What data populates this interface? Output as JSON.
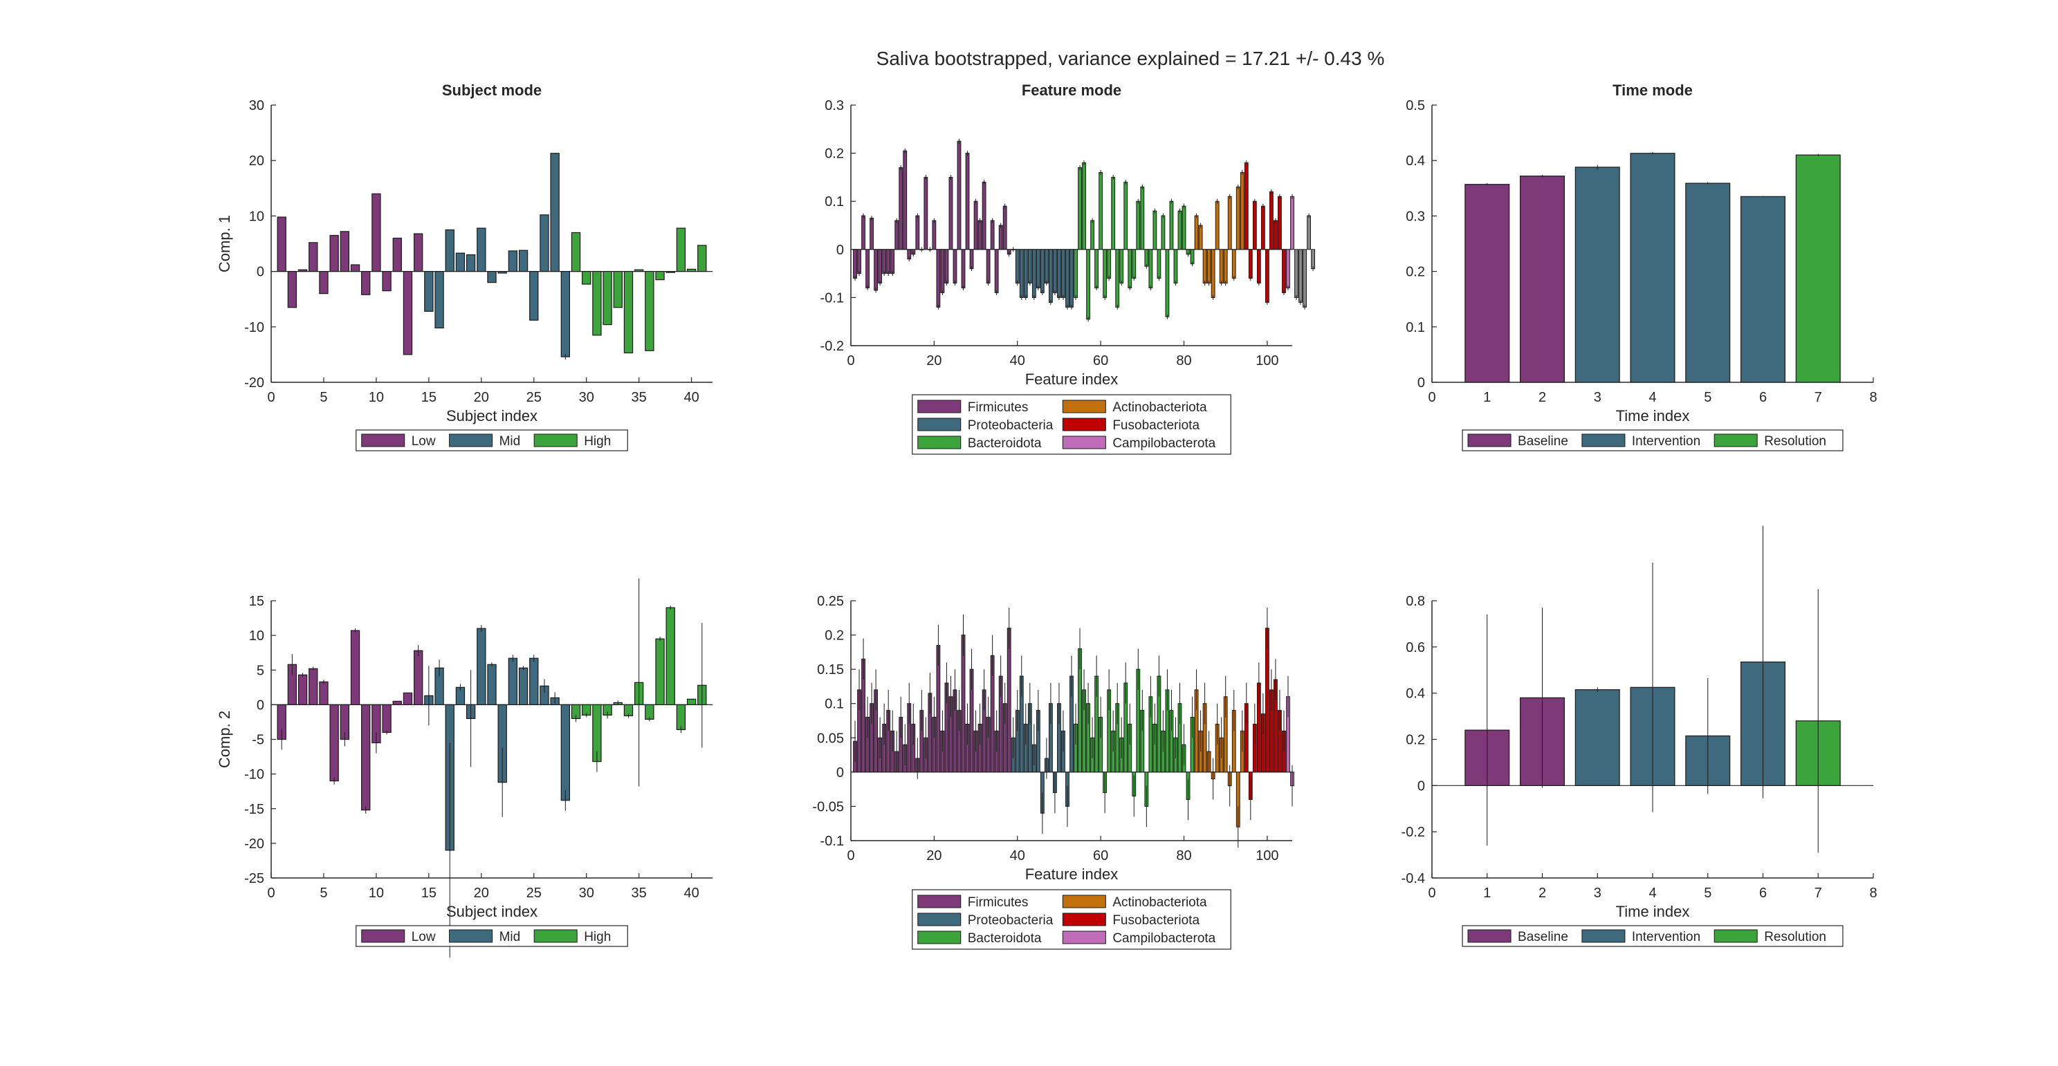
{
  "figure_title": "Saliva bootstrapped, variance explained = 17.21 +/- 0.43 %",
  "colors": {
    "low": "#7e3a78",
    "mid": "#3f6a7e",
    "high": "#3ba43b",
    "firmicutes": "#7e3a78",
    "proteobacteria": "#3f6a7e",
    "bacteroidota": "#3ba43b",
    "actinobacteriota": "#c2700e",
    "fusobacteriota": "#c00000",
    "campilobacterota": "#c06cb8",
    "baseline": "#7e3a78",
    "intervention": "#3f6a7e",
    "resolution": "#3ba43b"
  },
  "legends": {
    "subject": [
      {
        "label": "Low",
        "color": "#7e3a78"
      },
      {
        "label": "Mid",
        "color": "#3f6a7e"
      },
      {
        "label": "High",
        "color": "#3ba43b"
      }
    ],
    "feature": [
      {
        "label": "Firmicutes",
        "color": "#7e3a78"
      },
      {
        "label": "Actinobacteriota",
        "color": "#c2700e"
      },
      {
        "label": "Proteobacteria",
        "color": "#3f6a7e"
      },
      {
        "label": "Fusobacteriota",
        "color": "#c00000"
      },
      {
        "label": "Bacteroidota",
        "color": "#3ba43b"
      },
      {
        "label": "Campilobacterota",
        "color": "#c06cb8"
      }
    ],
    "time": [
      {
        "label": "Baseline",
        "color": "#7e3a78"
      },
      {
        "label": "Intervention",
        "color": "#3f6a7e"
      },
      {
        "label": "Resolution",
        "color": "#3ba43b"
      }
    ]
  },
  "chart_data": [
    {
      "type": "bar",
      "id": "subject-comp1",
      "title": "Subject mode",
      "xlabel": "Subject index",
      "ylabel": "Comp. 1",
      "xlim": [
        0,
        42
      ],
      "ylim": [
        -20,
        30
      ],
      "xticks": [
        0,
        5,
        10,
        15,
        20,
        25,
        30,
        35,
        40
      ],
      "yticks": [
        -20,
        -10,
        0,
        10,
        20,
        30
      ],
      "x": [
        1,
        2,
        3,
        4,
        5,
        6,
        7,
        8,
        9,
        10,
        11,
        12,
        13,
        14,
        15,
        16,
        17,
        18,
        19,
        20,
        21,
        22,
        23,
        24,
        25,
        26,
        27,
        28,
        29,
        30,
        31,
        32,
        33,
        34,
        35,
        36,
        37,
        38,
        39,
        40,
        41
      ],
      "values": [
        9.8,
        -6.5,
        0.3,
        5.2,
        -4.0,
        6.5,
        7.2,
        1.2,
        -4.2,
        14.0,
        -3.5,
        6.0,
        -15.0,
        6.8,
        -7.2,
        -10.2,
        7.5,
        3.3,
        3.0,
        7.8,
        -2.0,
        -0.3,
        3.7,
        3.8,
        -8.8,
        10.2,
        21.3,
        -15.4,
        7.0,
        -2.3,
        -11.5,
        -9.6,
        -6.5,
        -14.7,
        0.3,
        -14.3,
        -1.5,
        -0.2,
        7.8,
        0.4,
        4.7
      ],
      "errors": [
        0,
        0,
        0,
        0,
        0,
        0,
        0,
        0,
        0,
        0,
        0,
        0,
        0,
        0,
        0,
        0,
        0,
        0,
        0,
        0,
        0,
        0,
        0,
        0,
        0,
        0,
        0,
        0.5,
        0,
        0,
        0,
        0,
        0,
        0,
        0,
        0,
        0,
        0,
        0,
        0,
        0
      ],
      "groups": [
        "low",
        "low",
        "low",
        "low",
        "low",
        "low",
        "low",
        "low",
        "low",
        "low",
        "low",
        "low",
        "low",
        "low",
        "mid",
        "mid",
        "mid",
        "mid",
        "mid",
        "mid",
        "mid",
        "mid",
        "mid",
        "mid",
        "mid",
        "mid",
        "mid",
        "mid",
        "high",
        "high",
        "high",
        "high",
        "high",
        "high",
        "high",
        "high",
        "high",
        "high",
        "high",
        "high",
        "high"
      ]
    },
    {
      "type": "bar",
      "id": "feature-comp1",
      "title": "Feature mode",
      "xlabel": "Feature index",
      "ylabel": "",
      "xlim": [
        0,
        106
      ],
      "ylim": [
        -0.2,
        0.3
      ],
      "xticks": [
        0,
        20,
        40,
        60,
        80,
        100
      ],
      "yticks": [
        -0.2,
        -0.1,
        0,
        0.1,
        0.2,
        0.3
      ],
      "values": [
        -0.06,
        -0.05,
        0.07,
        -0.08,
        0.065,
        -0.085,
        -0.07,
        -0.05,
        -0.05,
        -0.05,
        0.06,
        0.17,
        0.205,
        -0.02,
        -0.01,
        0.07,
        0,
        0.15,
        0,
        0.06,
        -0.12,
        -0.09,
        -0.07,
        0.15,
        -0.07,
        0.225,
        -0.08,
        0.2,
        -0.04,
        0.1,
        0.06,
        0.14,
        -0.07,
        0.06,
        -0.09,
        0.05,
        0.09,
        -0.01,
        0,
        -0.07,
        -0.1,
        -0.1,
        -0.07,
        -0.1,
        -0.08,
        -0.09,
        -0.07,
        -0.11,
        -0.09,
        -0.1,
        -0.1,
        -0.12,
        -0.12,
        -0.1,
        0.17,
        0.18,
        -0.145,
        0.06,
        -0.08,
        0.16,
        -0.1,
        -0.06,
        0.15,
        -0.12,
        -0.07,
        0.14,
        -0.08,
        -0.06,
        0.1,
        0.13,
        -0.035,
        -0.08,
        0.08,
        -0.06,
        0.07,
        -0.14,
        0.1,
        -0.07,
        0.08,
        0.09,
        -0.01,
        -0.03,
        0.07,
        0.05,
        -0.07,
        -0.07,
        -0.1,
        0.1,
        -0.07,
        -0.07,
        0.11,
        -0.06,
        0.13,
        0.16,
        0.18,
        -0.06,
        0.1,
        -0.07,
        0.09,
        -0.11,
        0.12,
        0.06,
        0.11,
        -0.09,
        -0.08,
        0.11,
        -0.1,
        -0.11,
        -0.12,
        0.07,
        -0.04
      ],
      "errors": [
        0.005,
        0.005,
        0.005,
        0.005,
        0.005,
        0.005,
        0.005,
        0.005,
        0.005,
        0.005,
        0.005,
        0.005,
        0.005,
        0.005,
        0.005,
        0.005,
        0.005,
        0.005,
        0.005,
        0.005,
        0.005,
        0.005,
        0.005,
        0.005,
        0.005,
        0.005,
        0.005,
        0.005,
        0.005,
        0.005,
        0.005,
        0.005,
        0.005,
        0.005,
        0.005,
        0.005,
        0.005,
        0.005,
        0.005,
        0.005,
        0.005,
        0.005,
        0.005,
        0.005,
        0.005,
        0.005,
        0.005,
        0.005,
        0.005,
        0.005,
        0.005,
        0.005,
        0.005,
        0.005,
        0.005,
        0.005,
        0.005,
        0.005,
        0.005,
        0.005,
        0.005,
        0.005,
        0.005,
        0.005,
        0.005,
        0.005,
        0.005,
        0.005,
        0.005,
        0.005,
        0.005,
        0.005,
        0.005,
        0.005,
        0.005,
        0.005,
        0.005,
        0.005,
        0.005,
        0.005,
        0.005,
        0.005,
        0.005,
        0.005,
        0.005,
        0.005,
        0.005,
        0.005,
        0.005,
        0.005,
        0.005,
        0.005,
        0.005,
        0.005,
        0.005,
        0.005,
        0.005,
        0.005,
        0.005,
        0.005,
        0.005,
        0.005,
        0.005,
        0.005,
        0.005,
        0.005,
        0.005,
        0.005,
        0.005,
        0.005,
        0.005
      ],
      "group_ranges": [
        {
          "group": "firmicutes",
          "from": 1,
          "to": 38
        },
        {
          "group": "proteobacteria",
          "from": 39,
          "to": 53
        },
        {
          "group": "bacteroidota",
          "from": 54,
          "to": 82
        },
        {
          "group": "actinobacteriota",
          "from": 83,
          "to": 94
        },
        {
          "group": "fusobacteriota",
          "from": 95,
          "to": 104
        },
        {
          "group": "campilobacterota",
          "from": 105,
          "to": 106
        }
      ]
    },
    {
      "type": "bar",
      "id": "time-comp1",
      "title": "Time mode",
      "xlabel": "Time index",
      "ylabel": "",
      "xlim": [
        0,
        8
      ],
      "ylim": [
        0,
        0.5
      ],
      "xticks": [
        0,
        1,
        2,
        3,
        4,
        5,
        6,
        7,
        8
      ],
      "yticks": [
        0,
        0.1,
        0.2,
        0.3,
        0.4,
        0.5
      ],
      "x": [
        1,
        2,
        3,
        4,
        5,
        6,
        7
      ],
      "values": [
        0.357,
        0.372,
        0.388,
        0.413,
        0.359,
        0.335,
        0.41
      ],
      "errors": [
        0.002,
        0.002,
        0.004,
        0.002,
        0.002,
        0.001,
        0.002
      ],
      "groups": [
        "baseline",
        "baseline",
        "intervention",
        "intervention",
        "intervention",
        "intervention",
        "resolution"
      ]
    },
    {
      "type": "bar",
      "id": "subject-comp2",
      "title": "",
      "xlabel": "Subject index",
      "ylabel": "Comp. 2",
      "xlim": [
        0,
        42
      ],
      "ylim": [
        -25,
        15
      ],
      "xticks": [
        0,
        5,
        10,
        15,
        20,
        25,
        30,
        35,
        40
      ],
      "yticks": [
        -25,
        -20,
        -15,
        -10,
        -5,
        0,
        5,
        10,
        15
      ],
      "x": [
        1,
        2,
        3,
        4,
        5,
        6,
        7,
        8,
        9,
        10,
        11,
        12,
        13,
        14,
        15,
        16,
        17,
        18,
        19,
        20,
        21,
        22,
        23,
        24,
        25,
        26,
        27,
        28,
        29,
        30,
        31,
        32,
        33,
        34,
        35,
        36,
        37,
        38,
        39,
        40,
        41
      ],
      "values": [
        -5.0,
        5.8,
        4.3,
        5.2,
        3.3,
        -11.0,
        -5.0,
        10.7,
        -15.2,
        -5.5,
        -4.0,
        0.5,
        1.7,
        7.8,
        1.3,
        5.3,
        -21.0,
        2.5,
        -2.0,
        11.0,
        5.8,
        -11.2,
        6.7,
        5.3,
        6.7,
        2.7,
        1.0,
        -13.8,
        -2.0,
        -1.5,
        -8.2,
        -1.5,
        0.3,
        -1.6,
        3.2,
        -2.1,
        9.5,
        14.0,
        -3.6,
        0.8,
        2.8
      ],
      "errors": [
        1.5,
        1.5,
        0.3,
        0.3,
        0.3,
        0.5,
        1.0,
        0.3,
        0.5,
        1.5,
        0.3,
        0,
        0,
        0.8,
        4.3,
        1.2,
        15.5,
        0.5,
        7.0,
        0.5,
        0.3,
        5.0,
        0.5,
        0.3,
        0.5,
        1.0,
        0.8,
        1.5,
        0.5,
        0.3,
        1.5,
        0.5,
        0.3,
        0.3,
        15.0,
        0.3,
        0.3,
        0.3,
        0.5,
        0,
        9.0
      ],
      "groups": [
        "low",
        "low",
        "low",
        "low",
        "low",
        "low",
        "low",
        "low",
        "low",
        "low",
        "low",
        "low",
        "low",
        "low",
        "mid",
        "mid",
        "mid",
        "mid",
        "mid",
        "mid",
        "mid",
        "mid",
        "mid",
        "mid",
        "mid",
        "mid",
        "mid",
        "mid",
        "high",
        "high",
        "high",
        "high",
        "high",
        "high",
        "high",
        "high",
        "high",
        "high",
        "high",
        "high",
        "high"
      ]
    },
    {
      "type": "bar",
      "id": "feature-comp2",
      "title": "",
      "xlabel": "Feature index",
      "ylabel": "",
      "xlim": [
        0,
        106
      ],
      "ylim": [
        -0.1,
        0.25
      ],
      "xticks": [
        0,
        20,
        40,
        60,
        80,
        100
      ],
      "yticks": [
        -0.1,
        -0.05,
        0,
        0.05,
        0.1,
        0.15,
        0.2,
        0.25
      ],
      "values": [
        0.045,
        0.12,
        0.165,
        0.08,
        0.1,
        0.12,
        0.05,
        0.07,
        0.09,
        0.06,
        0.03,
        0.08,
        0.04,
        0.1,
        0.07,
        0.02,
        0.09,
        0.05,
        0.115,
        0.08,
        0.185,
        0.06,
        0.13,
        0.11,
        0.12,
        0.09,
        0.2,
        0.07,
        0.15,
        0.06,
        0.07,
        0.12,
        0.08,
        0.17,
        0.06,
        0.14,
        0.1,
        0.21,
        0.05,
        0.09,
        0.14,
        0.07,
        0.1,
        0.04,
        0.09,
        -0.06,
        0.02,
        0.1,
        -0.03,
        0.1,
        0.06,
        -0.05,
        0.14,
        0.07,
        0.18,
        0.12,
        0.1,
        0.05,
        0.14,
        0.08,
        -0.03,
        0.12,
        0.06,
        0.1,
        0.05,
        0.13,
        0.07,
        -0.035,
        0.15,
        0.09,
        -0.05,
        0.11,
        0.07,
        0.14,
        0.06,
        0.12,
        0.09,
        0.05,
        0.1,
        0.04,
        -0.04,
        0.08,
        0.12,
        0.06,
        0.1,
        0.03,
        -0.01,
        0.07,
        0.05,
        0.11,
        -0.02,
        0.09,
        -0.08,
        0.06,
        0.1,
        -0.04,
        0.07,
        0.13,
        0.085,
        0.21,
        0.12,
        0.135,
        0.09,
        0.06,
        0.11,
        -0.02
      ],
      "errors": [
        0.03,
        0.03,
        0.03,
        0.03,
        0.03,
        0.03,
        0.03,
        0.03,
        0.03,
        0.03,
        0.03,
        0.03,
        0.03,
        0.03,
        0.03,
        0.03,
        0.03,
        0.03,
        0.03,
        0.03,
        0.03,
        0.03,
        0.03,
        0.03,
        0.03,
        0.03,
        0.03,
        0.03,
        0.03,
        0.03,
        0.03,
        0.03,
        0.03,
        0.03,
        0.03,
        0.03,
        0.03,
        0.03,
        0.03,
        0.03,
        0.03,
        0.03,
        0.03,
        0.03,
        0.03,
        0.03,
        0.03,
        0.03,
        0.03,
        0.03,
        0.03,
        0.03,
        0.03,
        0.03,
        0.03,
        0.03,
        0.03,
        0.03,
        0.03,
        0.03,
        0.03,
        0.03,
        0.03,
        0.03,
        0.03,
        0.03,
        0.03,
        0.03,
        0.03,
        0.03,
        0.03,
        0.03,
        0.03,
        0.03,
        0.03,
        0.03,
        0.03,
        0.03,
        0.03,
        0.03,
        0.03,
        0.03,
        0.03,
        0.03,
        0.03,
        0.03,
        0.03,
        0.03,
        0.03,
        0.03,
        0.03,
        0.03,
        0.03,
        0.03,
        0.03,
        0.03,
        0.03,
        0.03,
        0.03,
        0.03,
        0.03,
        0.03,
        0.03,
        0.03,
        0.03,
        0.03
      ],
      "group_ranges": [
        {
          "group": "firmicutes",
          "from": 1,
          "to": 38
        },
        {
          "group": "proteobacteria",
          "from": 39,
          "to": 53
        },
        {
          "group": "bacteroidota",
          "from": 54,
          "to": 82
        },
        {
          "group": "actinobacteriota",
          "from": 83,
          "to": 94
        },
        {
          "group": "fusobacteriota",
          "from": 95,
          "to": 104
        },
        {
          "group": "campilobacterota",
          "from": 105,
          "to": 106
        }
      ]
    },
    {
      "type": "bar",
      "id": "time-comp2",
      "title": "",
      "xlabel": "Time index",
      "ylabel": "",
      "xlim": [
        0,
        8
      ],
      "ylim": [
        -0.4,
        0.8
      ],
      "xticks": [
        0,
        1,
        2,
        3,
        4,
        5,
        6,
        7,
        8
      ],
      "yticks": [
        -0.4,
        -0.2,
        0,
        0.2,
        0.4,
        0.6,
        0.8
      ],
      "x": [
        1,
        2,
        3,
        4,
        5,
        6,
        7
      ],
      "values": [
        0.24,
        0.38,
        0.415,
        0.425,
        0.215,
        0.535,
        0.28
      ],
      "errors": [
        0.5,
        0.39,
        0.01,
        0.54,
        0.25,
        0.59,
        0.57
      ],
      "groups": [
        "baseline",
        "baseline",
        "intervention",
        "intervention",
        "intervention",
        "intervention",
        "resolution"
      ]
    }
  ]
}
